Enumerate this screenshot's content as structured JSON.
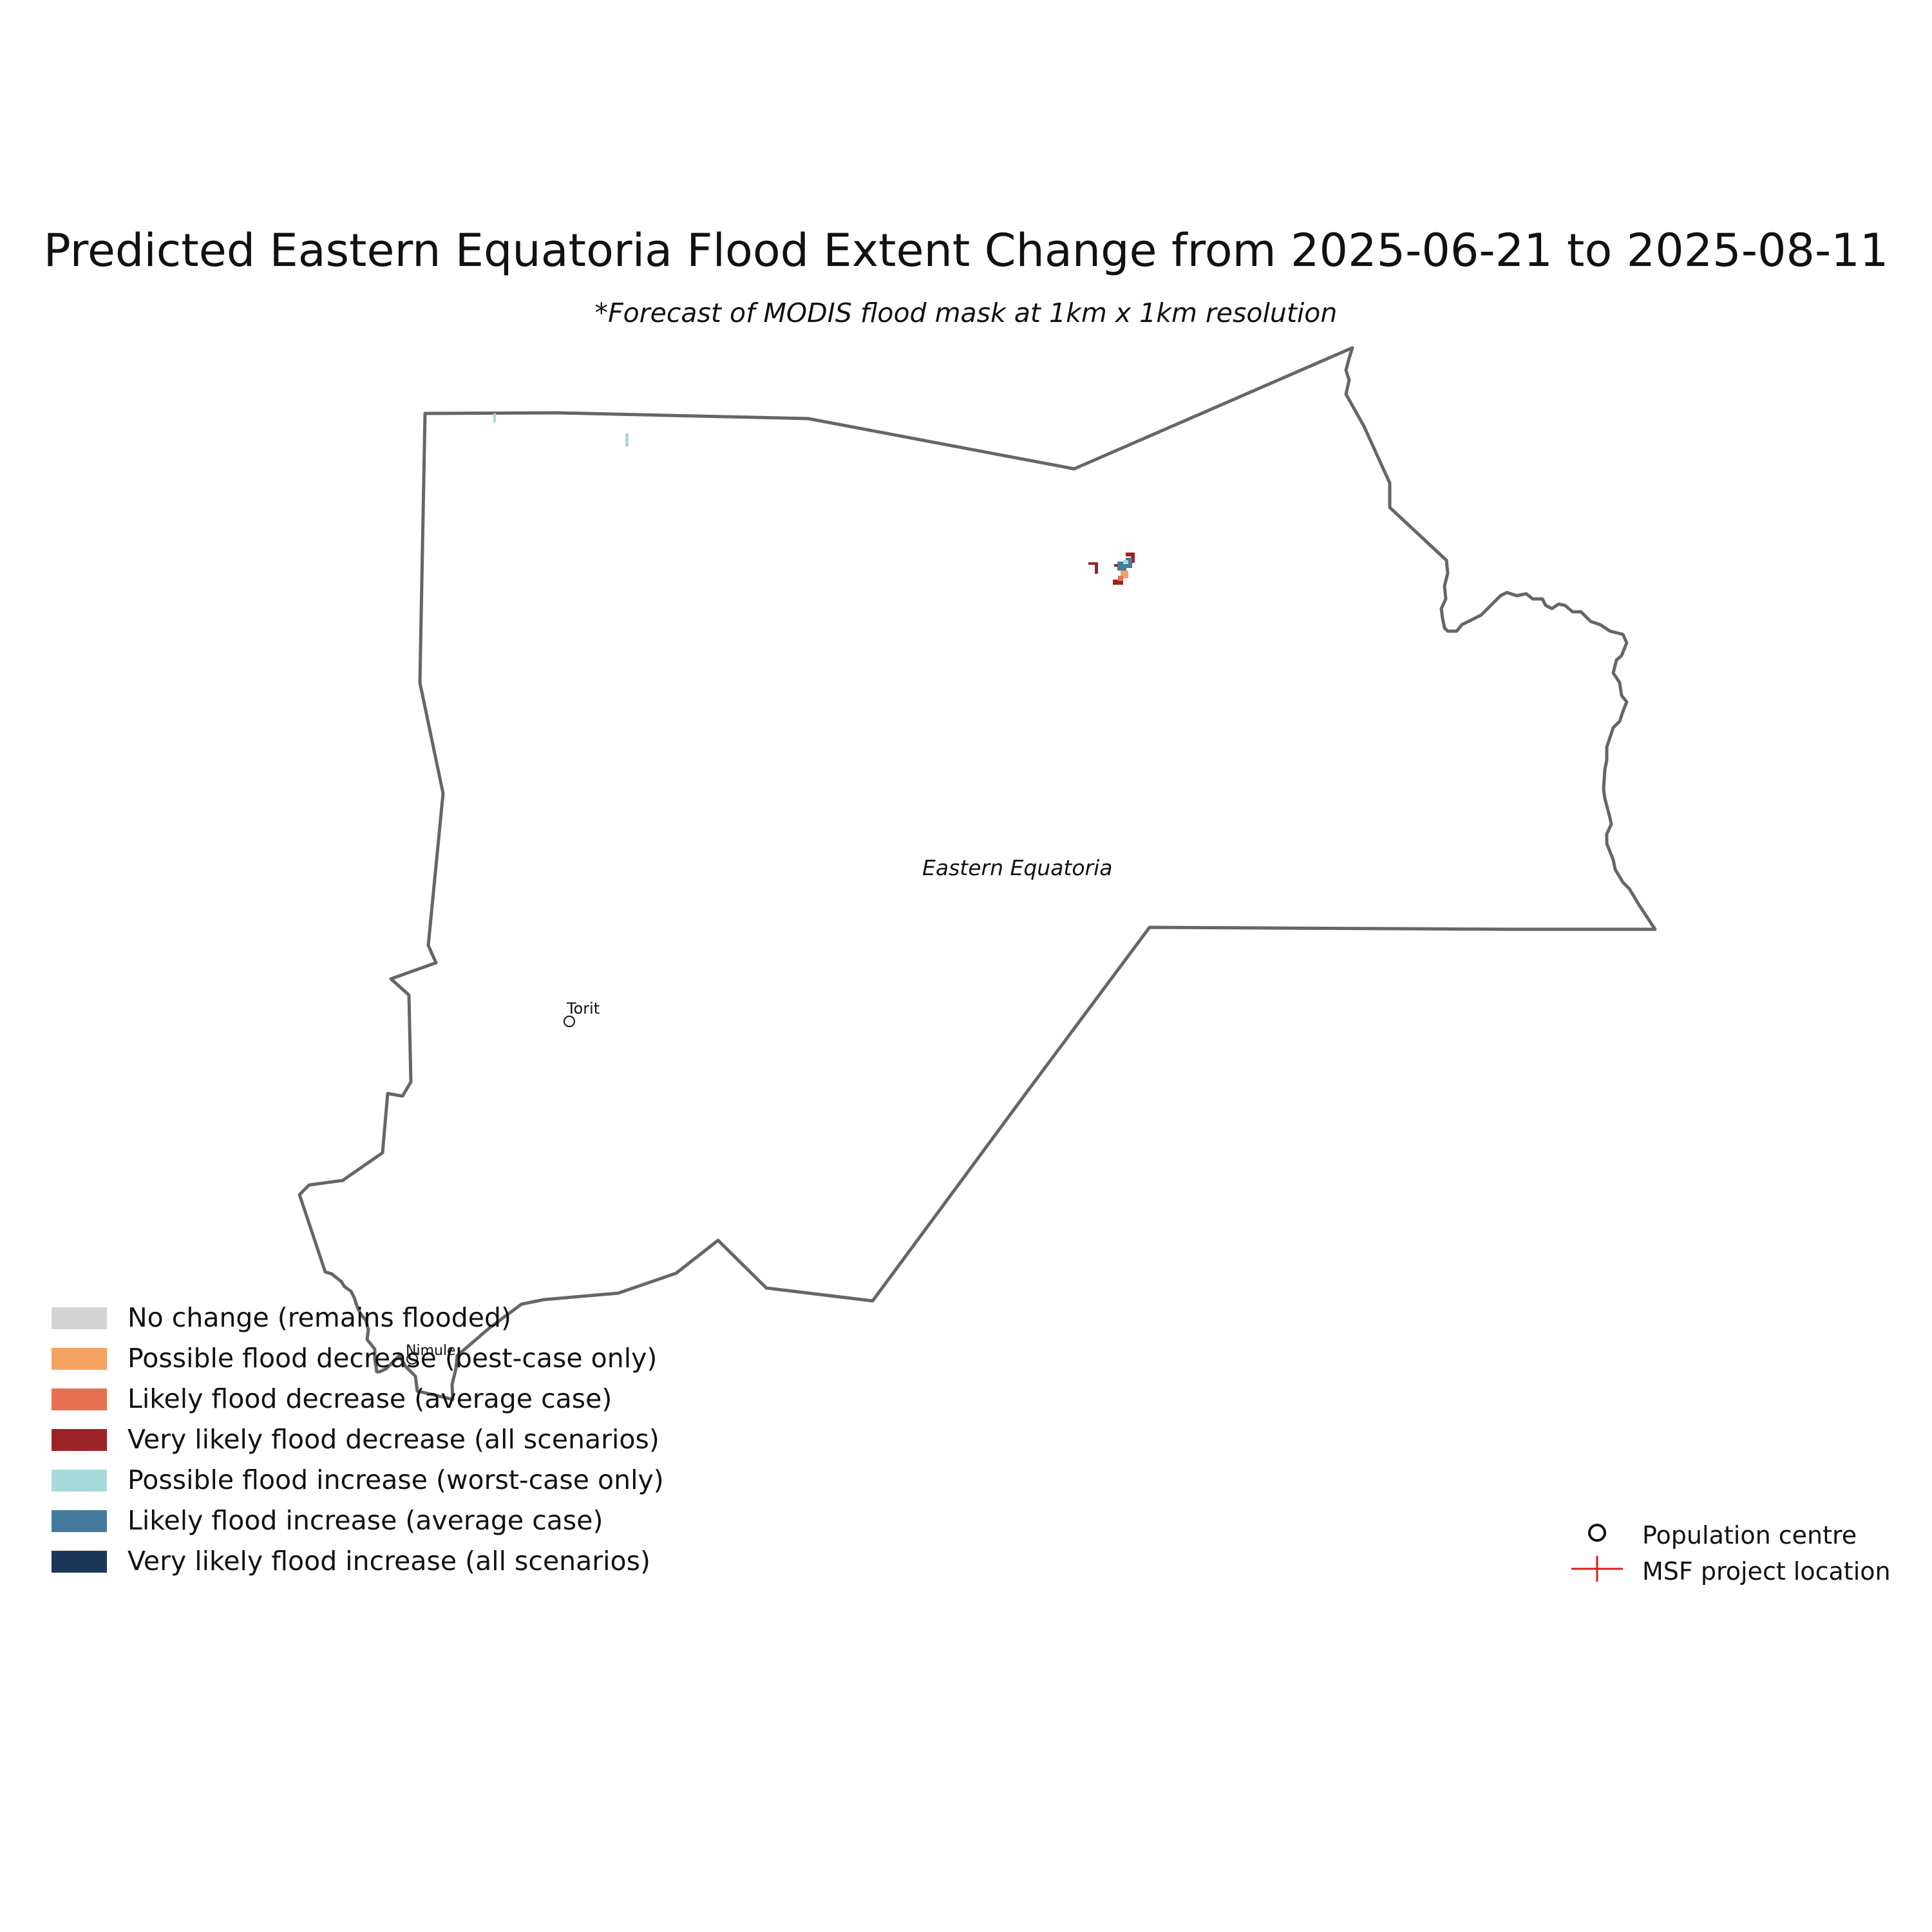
{
  "title": "Predicted Eastern Equatoria Flood Extent Change from 2025-06-21 to 2025-08-11",
  "subtitle": "*Forecast of MODIS flood mask at 1km x 1km resolution",
  "map": {
    "region_label": "Eastern Equatoria",
    "boundary_color": "#666666",
    "towns": [
      {
        "name": "Torit"
      },
      {
        "name": "Nimule"
      }
    ]
  },
  "legend": {
    "categories": [
      {
        "label": "No change (remains flooded)",
        "color": "#d3d3d3"
      },
      {
        "label": "Possible flood decrease (best-case only)",
        "color": "#f4a261"
      },
      {
        "label": "Likely flood decrease (average case)",
        "color": "#e76f51"
      },
      {
        "label": "Very likely flood decrease (all scenarios)",
        "color": "#9b2226"
      },
      {
        "label": "Possible flood increase (worst-case only)",
        "color": "#a8dadc"
      },
      {
        "label": "Likely flood increase (average case)",
        "color": "#457b9d"
      },
      {
        "label": "Very likely flood increase (all scenarios)",
        "color": "#1d3557"
      }
    ],
    "markers": [
      {
        "label": "Population centre",
        "icon": "circle-icon",
        "color": "#111111"
      },
      {
        "label": "MSF project location",
        "icon": "plus-icon",
        "color": "#e31a1c"
      }
    ]
  }
}
